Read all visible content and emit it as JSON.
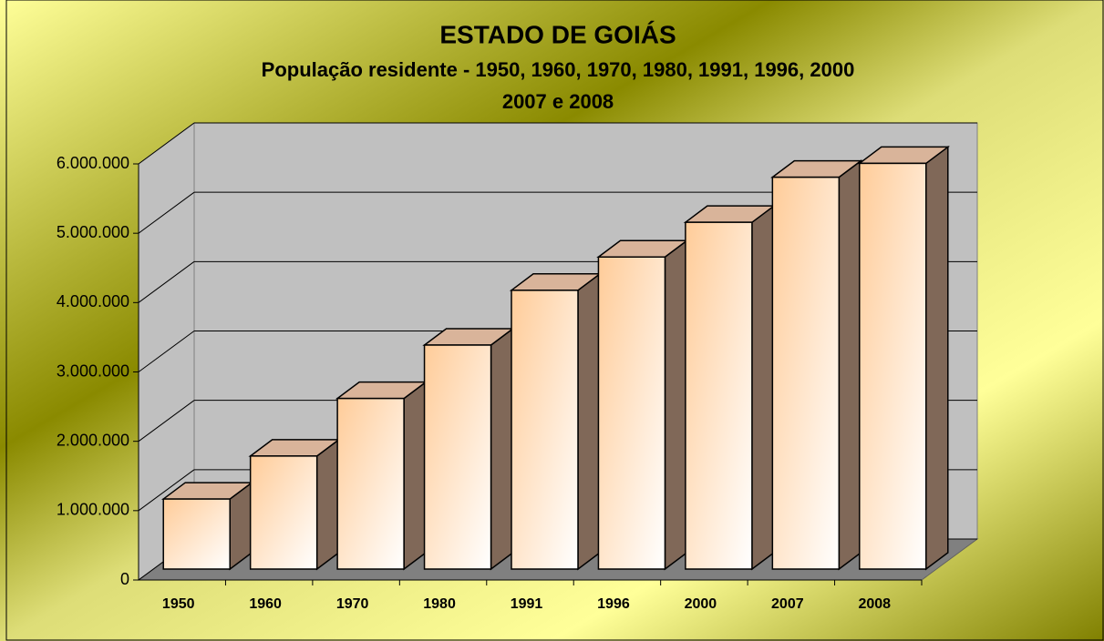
{
  "chart_data": {
    "type": "bar3d",
    "title": "ESTADO DE GOIÁS",
    "subtitle": [
      "População residente - 1950, 1960, 1970, 1980, 1991, 1996, 2000",
      "2007 e 2008"
    ],
    "categories": [
      "1950",
      "1960",
      "1970",
      "1980",
      "1991",
      "1996",
      "2000",
      "2007",
      "2008"
    ],
    "values": [
      1010000,
      1630000,
      2460000,
      3230000,
      4020000,
      4500000,
      5000000,
      5650000,
      5850000
    ],
    "color": "#ffcc99",
    "ylim": [
      0,
      6000000
    ],
    "yticks": [
      0,
      {
        "value": 1000000,
        "label": "1.000.000"
      },
      {
        "value": 2000000,
        "label": "2.000.000"
      },
      {
        "value": 3000000,
        "label": "3.000.000"
      },
      {
        "value": 4000000,
        "label": "4.000.000"
      },
      {
        "value": 5000000,
        "label": "5.000.000"
      },
      {
        "value": 6000000,
        "label": "6.000.000"
      }
    ],
    "grid": true
  }
}
